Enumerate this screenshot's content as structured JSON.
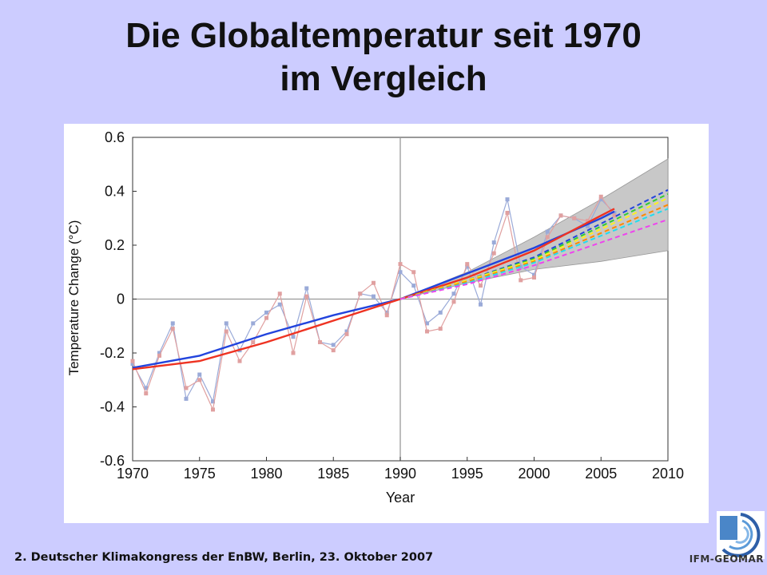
{
  "slide": {
    "title_line1": "Die Globaltemperatur seit 1970",
    "title_line2": "im Vergleich",
    "footer": "2. Deutscher Klimakongress der EnBW, Berlin, 23. Oktober 2007",
    "logo_text": "IFM-GEOMAR"
  },
  "chart_data": {
    "type": "line",
    "xlabel": "Year",
    "ylabel": "Temperature Change (°C)",
    "xlim": [
      1970,
      2010
    ],
    "ylim": [
      -0.6,
      0.6
    ],
    "x_ticks": [
      "1970",
      "1975",
      "1980",
      "1985",
      "1990",
      "1995",
      "2000",
      "2005",
      "2010"
    ],
    "y_ticks": [
      "0.6",
      "0.4",
      "0.2",
      "0",
      "-0.2",
      "-0.4",
      "-0.6"
    ],
    "reference_lines": {
      "x": 1990,
      "y": 0
    },
    "grid": false,
    "observations": [
      {
        "color": "#9aaad8",
        "x": [
          1970,
          1971,
          1972,
          1973,
          1974,
          1975,
          1976,
          1977,
          1978,
          1979,
          1980,
          1981,
          1982,
          1983,
          1984,
          1985,
          1986,
          1987,
          1988,
          1989,
          1990,
          1991,
          1992,
          1993,
          1994,
          1995,
          1996,
          1997,
          1998,
          1999,
          2000,
          2001,
          2002,
          2003,
          2004,
          2005,
          2006
        ],
        "values": [
          -0.24,
          -0.33,
          -0.2,
          -0.09,
          -0.37,
          -0.28,
          -0.38,
          -0.09,
          -0.19,
          -0.09,
          -0.05,
          -0.02,
          -0.14,
          0.04,
          -0.16,
          -0.17,
          -0.12,
          0.02,
          0.01,
          -0.05,
          0.1,
          0.05,
          -0.09,
          -0.05,
          0.02,
          0.12,
          -0.02,
          0.21,
          0.37,
          0.12,
          0.09,
          0.25,
          0.31,
          0.3,
          0.27,
          0.37,
          0.32
        ]
      },
      {
        "color": "#e0a0a0",
        "x": [
          1970,
          1971,
          1972,
          1973,
          1974,
          1975,
          1976,
          1977,
          1978,
          1979,
          1980,
          1981,
          1982,
          1983,
          1984,
          1985,
          1986,
          1987,
          1988,
          1989,
          1990,
          1991,
          1992,
          1993,
          1994,
          1995,
          1996,
          1997,
          1998,
          1999,
          2000,
          2001,
          2002,
          2003,
          2004,
          2005,
          2006
        ],
        "values": [
          -0.23,
          -0.35,
          -0.21,
          -0.11,
          -0.33,
          -0.3,
          -0.41,
          -0.12,
          -0.23,
          -0.16,
          -0.07,
          0.02,
          -0.2,
          0.01,
          -0.16,
          -0.19,
          -0.13,
          0.02,
          0.06,
          -0.06,
          0.13,
          0.1,
          -0.12,
          -0.11,
          -0.01,
          0.13,
          0.05,
          0.17,
          0.32,
          0.07,
          0.08,
          0.23,
          0.31,
          0.3,
          0.29,
          0.38,
          0.31
        ]
      }
    ],
    "trends": [
      {
        "color": "#2244dd",
        "x": [
          1970,
          1975,
          1980,
          1985,
          1990,
          1995,
          2000,
          2005,
          2006
        ],
        "values": [
          -0.255,
          -0.21,
          -0.13,
          -0.06,
          0.0,
          0.095,
          0.19,
          0.3,
          0.325
        ]
      },
      {
        "color": "#ee3322",
        "x": [
          1970,
          1975,
          1980,
          1985,
          1990,
          1995,
          2000,
          2005,
          2006
        ],
        "values": [
          -0.26,
          -0.23,
          -0.16,
          -0.08,
          0.0,
          0.08,
          0.18,
          0.31,
          0.335
        ]
      }
    ],
    "projection_range": {
      "color": "#c8c8c8",
      "x": [
        1990,
        1995,
        2000,
        2005,
        2010
      ],
      "upper": [
        0.0,
        0.1,
        0.23,
        0.37,
        0.52
      ],
      "lower": [
        0.0,
        0.06,
        0.11,
        0.14,
        0.18
      ]
    },
    "projections": [
      {
        "color": "#2244dd",
        "x": [
          1990,
          1995,
          2000,
          2005,
          2010
        ],
        "values": [
          0.0,
          0.07,
          0.155,
          0.28,
          0.405
        ]
      },
      {
        "color": "#33cc33",
        "x": [
          1990,
          1995,
          2000,
          2005,
          2010
        ],
        "values": [
          0.0,
          0.07,
          0.15,
          0.27,
          0.39
        ]
      },
      {
        "color": "#ffee22",
        "x": [
          1990,
          1995,
          2000,
          2005,
          2010
        ],
        "values": [
          0.0,
          0.07,
          0.145,
          0.26,
          0.375
        ]
      },
      {
        "color": "#ff8800",
        "x": [
          1990,
          1995,
          2000,
          2005,
          2010
        ],
        "values": [
          0.0,
          0.065,
          0.14,
          0.245,
          0.35
        ]
      },
      {
        "color": "#22ddee",
        "x": [
          1990,
          1995,
          2000,
          2005,
          2010
        ],
        "values": [
          0.0,
          0.06,
          0.135,
          0.235,
          0.335
        ]
      },
      {
        "color": "#ee44ee",
        "x": [
          1990,
          1995,
          2000,
          2005,
          2010
        ],
        "values": [
          0.0,
          0.055,
          0.125,
          0.21,
          0.295
        ]
      }
    ]
  }
}
